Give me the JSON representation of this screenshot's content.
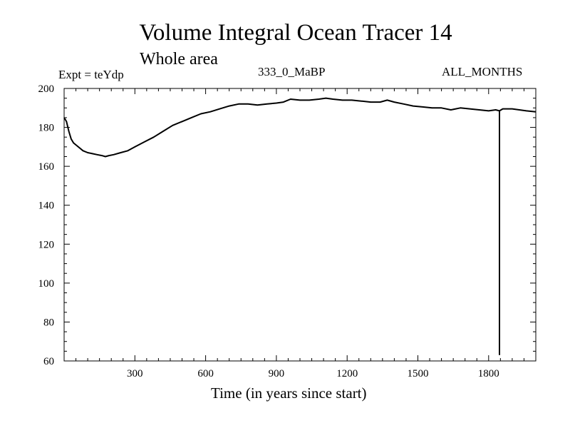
{
  "chart_data": {
    "type": "line",
    "title": "Volume Integral Ocean Tracer 14",
    "subtitle": "Whole area",
    "experiment": "Expt = teYdp",
    "run_label": "333_0_MaBP",
    "period_label": "ALL_MONTHS",
    "xlabel": "Time (in years since start)",
    "ylabel": "",
    "xlim": [
      0,
      2000
    ],
    "ylim": [
      60,
      200
    ],
    "x_ticks": [
      300,
      600,
      900,
      1200,
      1500,
      1800
    ],
    "y_ticks": [
      60,
      80,
      100,
      120,
      140,
      160,
      180,
      200
    ],
    "grid": false,
    "series": [
      {
        "x": [
          0,
          10,
          20,
          30,
          40,
          60,
          80,
          100,
          120,
          140,
          160,
          175,
          190,
          210,
          240,
          270,
          300,
          340,
          380,
          420,
          460,
          500,
          540,
          580,
          620,
          660,
          700,
          740,
          780,
          820,
          860,
          900,
          930,
          960,
          1000,
          1040,
          1080,
          1110,
          1140,
          1180,
          1220,
          1260,
          1300,
          1340,
          1370,
          1400,
          1440,
          1480,
          1520,
          1560,
          1600,
          1640,
          1680,
          1720,
          1760,
          1800,
          1830,
          1846,
          1860,
          1880,
          1900,
          1930,
          1960,
          2000
        ],
        "y": [
          185,
          183,
          178,
          174,
          172,
          170,
          168,
          167,
          166.5,
          166,
          165.5,
          165,
          165.5,
          166,
          167,
          168,
          170,
          172.5,
          175,
          178,
          181,
          183,
          185,
          187,
          188,
          189.5,
          191,
          192,
          192,
          191.5,
          192,
          192.5,
          193,
          194.5,
          194,
          194,
          194.5,
          195,
          194.5,
          194,
          194,
          193.5,
          193,
          193,
          194,
          193,
          192,
          191,
          190.5,
          190,
          190,
          189,
          190,
          189.5,
          189,
          188.5,
          189,
          188.5,
          189.5,
          189.5,
          189.5,
          189,
          188.5,
          188
        ]
      },
      {
        "x": [
          1846,
          1846
        ],
        "y": [
          188.5,
          63
        ]
      }
    ]
  }
}
